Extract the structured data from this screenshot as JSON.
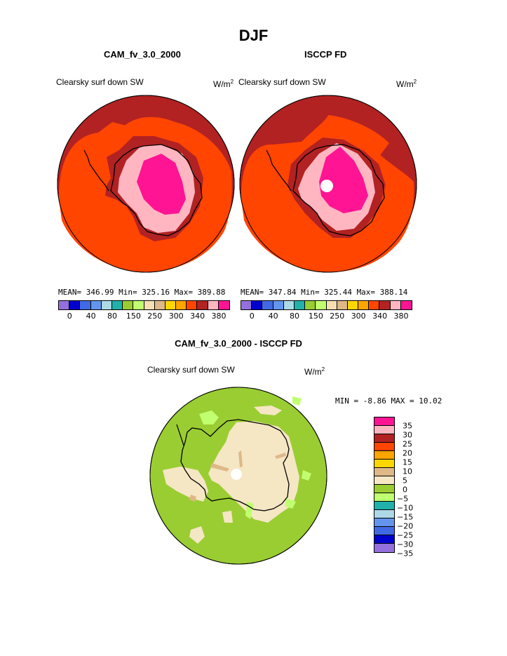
{
  "title": "DJF",
  "panels": [
    {
      "model": "CAM_fv_3.0_2000",
      "variable": "Clearsky surf down SW",
      "units_base": "W/m",
      "units_exp": "2",
      "stats": "MEAN= 346.99   Min= 325.16   Max= 389.88"
    },
    {
      "model": "ISCCP FD",
      "variable": "Clearsky surf down SW",
      "units_base": "W/m",
      "units_exp": "2",
      "stats": "MEAN= 347.84   Min= 325.44   Max= 388.14"
    }
  ],
  "top_colorbar": {
    "colors": [
      "#9370db",
      "#0000cd",
      "#4169e1",
      "#6495ed",
      "#add8e6",
      "#20b2aa",
      "#9acd32",
      "#c0ff70",
      "#f5deb3",
      "#deb887",
      "#ffd700",
      "#ffa500",
      "#ff4500",
      "#b22222",
      "#ffb6c1",
      "#ff1493"
    ],
    "ticks": [
      "0",
      "40",
      "80",
      "150",
      "250",
      "300",
      "340",
      "380"
    ]
  },
  "diff": {
    "title": "CAM_fv_3.0_2000 - ISCCP FD",
    "variable": "Clearsky surf down SW",
    "units_base": "W/m",
    "units_exp": "2",
    "minmax": "MIN =   -8.86  MAX =   10.02"
  },
  "diff_colorbar": {
    "colors_top_to_bottom": [
      "#ff1493",
      "#ffb6c1",
      "#b22222",
      "#ff4500",
      "#ffa500",
      "#ffd700",
      "#deb887",
      "#f5e6c4",
      "#9acd32",
      "#c0ff70",
      "#20b2aa",
      "#add8e6",
      "#6495ed",
      "#4169e1",
      "#0000cd",
      "#9370db"
    ],
    "ticks": [
      "35",
      "30",
      "25",
      "20",
      "15",
      "10",
      "5",
      "0",
      "−5",
      "−10",
      "−15",
      "−20",
      "−25",
      "−30",
      "−35"
    ]
  }
}
